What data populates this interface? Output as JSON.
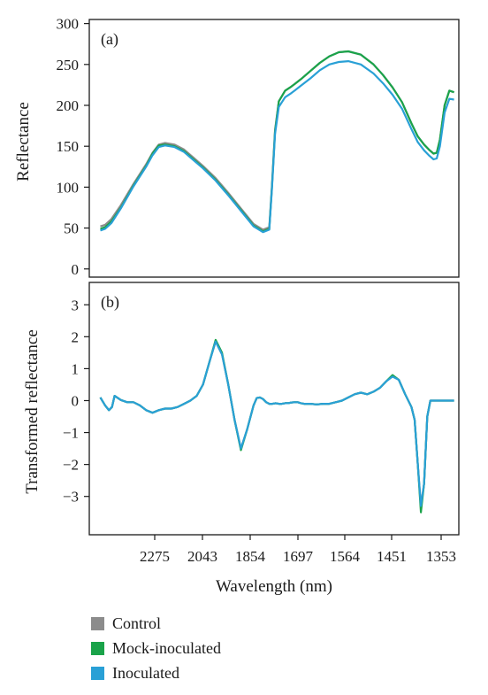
{
  "colors": {
    "control": "#8c8c8c",
    "mock": "#1aa34a",
    "inoculated": "#29a0d6",
    "axis": "#1a1a1a"
  },
  "legend": [
    {
      "name": "Control",
      "color": "#8c8c8c"
    },
    {
      "name": "Mock-inoculated",
      "color": "#1aa34a"
    },
    {
      "name": "Inoculated",
      "color": "#29a0d6"
    }
  ],
  "chart_data": [
    {
      "type": "line",
      "panel_label": "(a)",
      "ylabel": "Reflectance",
      "xlabel": "",
      "ylim": [
        -10,
        305
      ],
      "yticks": [
        0,
        50,
        100,
        150,
        200,
        250,
        300
      ],
      "x_reversed": true,
      "xlim": [
        2500,
        1330
      ],
      "x": [
        2465,
        2450,
        2430,
        2400,
        2360,
        2320,
        2300,
        2280,
        2260,
        2230,
        2200,
        2170,
        2140,
        2100,
        2060,
        2020,
        1980,
        1950,
        1930,
        1922,
        1912,
        1900,
        1880,
        1864,
        1850,
        1830,
        1800,
        1770,
        1740,
        1710,
        1680,
        1640,
        1600,
        1570,
        1540,
        1510,
        1480,
        1460,
        1440,
        1425,
        1410,
        1400,
        1390,
        1375,
        1360,
        1345
      ],
      "series": [
        {
          "name": "Control",
          "values": [
            52,
            54,
            61,
            78,
            104,
            128,
            142,
            152,
            154,
            152,
            146,
            136,
            126,
            111,
            93,
            74,
            55,
            48,
            51,
            100,
            170,
            205,
            218,
            222,
            226,
            232,
            242,
            252,
            260,
            265,
            266,
            262,
            250,
            237,
            222,
            204,
            178,
            162,
            152,
            146,
            141,
            142,
            158,
            200,
            218,
            216
          ]
        },
        {
          "name": "Mock-inoculated",
          "values": [
            49,
            51,
            58,
            75,
            102,
            126,
            141,
            151,
            152,
            150,
            144,
            134,
            124,
            109,
            91,
            72,
            53,
            46,
            49,
            98,
            168,
            205,
            218,
            222,
            226,
            232,
            242,
            252,
            260,
            265,
            266,
            262,
            250,
            237,
            222,
            204,
            178,
            162,
            152,
            146,
            141,
            142,
            158,
            200,
            218,
            216
          ]
        },
        {
          "name": "Inoculated",
          "values": [
            47,
            49,
            56,
            74,
            101,
            125,
            139,
            149,
            151,
            149,
            143,
            133,
            123,
            108,
            90,
            71,
            52,
            45,
            48,
            96,
            165,
            198,
            210,
            214,
            218,
            224,
            233,
            243,
            250,
            253,
            254,
            250,
            239,
            227,
            213,
            196,
            171,
            155,
            145,
            139,
            134,
            135,
            150,
            191,
            208,
            207
          ]
        }
      ]
    },
    {
      "type": "line",
      "panel_label": "(b)",
      "ylabel": "Transformed reflectance",
      "xlabel": "Wavelength (nm)",
      "ylim": [
        -4.2,
        3.7
      ],
      "yticks": [
        -3,
        -2,
        -1,
        0,
        1,
        2,
        3
      ],
      "x_reversed": true,
      "xlim": [
        2500,
        1330
      ],
      "xticks": [
        "2275",
        "2043",
        "1854",
        "1697",
        "1564",
        "1451",
        "1353"
      ],
      "x": [
        2465,
        2450,
        2438,
        2428,
        2420,
        2400,
        2380,
        2360,
        2340,
        2320,
        2300,
        2280,
        2260,
        2240,
        2220,
        2200,
        2180,
        2160,
        2140,
        2120,
        2100,
        2080,
        2060,
        2040,
        2020,
        2000,
        1980,
        1970,
        1960,
        1950,
        1940,
        1930,
        1920,
        1910,
        1900,
        1890,
        1880,
        1870,
        1860,
        1850,
        1840,
        1830,
        1820,
        1800,
        1780,
        1760,
        1740,
        1720,
        1700,
        1680,
        1660,
        1640,
        1620,
        1600,
        1580,
        1560,
        1540,
        1520,
        1500,
        1480,
        1470,
        1460,
        1450,
        1440,
        1430,
        1420,
        1410,
        1400,
        1395,
        1385,
        1375,
        1365,
        1357,
        1345
      ],
      "series": [
        {
          "name": "Control",
          "values": [
            0.1,
            -0.15,
            -0.3,
            -0.2,
            0.15,
            0.02,
            -0.05,
            -0.05,
            -0.15,
            -0.3,
            -0.38,
            -0.3,
            -0.25,
            -0.25,
            -0.2,
            -0.1,
            0.0,
            0.15,
            0.5,
            1.2,
            1.85,
            1.45,
            0.5,
            -0.6,
            -1.5,
            -0.9,
            -0.15,
            0.08,
            0.1,
            0.05,
            -0.05,
            -0.1,
            -0.1,
            -0.08,
            -0.1,
            -0.1,
            -0.08,
            -0.08,
            -0.06,
            -0.05,
            -0.05,
            -0.08,
            -0.1,
            -0.1,
            -0.12,
            -0.1,
            -0.1,
            -0.05,
            0.0,
            0.1,
            0.2,
            0.25,
            0.2,
            0.28,
            0.4,
            0.6,
            0.78,
            0.65,
            0.2,
            -0.2,
            -0.6,
            -2.0,
            -3.3,
            -2.6,
            -0.5,
            0,
            0,
            0,
            0,
            0,
            0,
            0,
            0,
            0
          ]
        },
        {
          "name": "Mock-inoculated",
          "values": [
            0.1,
            -0.15,
            -0.3,
            -0.2,
            0.15,
            0.02,
            -0.05,
            -0.05,
            -0.15,
            -0.3,
            -0.38,
            -0.3,
            -0.25,
            -0.25,
            -0.2,
            -0.1,
            0.0,
            0.15,
            0.5,
            1.2,
            1.9,
            1.5,
            0.5,
            -0.6,
            -1.55,
            -0.9,
            -0.15,
            0.08,
            0.1,
            0.05,
            -0.05,
            -0.1,
            -0.1,
            -0.08,
            -0.1,
            -0.1,
            -0.08,
            -0.08,
            -0.06,
            -0.05,
            -0.05,
            -0.08,
            -0.1,
            -0.1,
            -0.12,
            -0.1,
            -0.1,
            -0.05,
            0.0,
            0.1,
            0.2,
            0.25,
            0.2,
            0.28,
            0.4,
            0.6,
            0.8,
            0.65,
            0.2,
            -0.2,
            -0.6,
            -2.0,
            -3.5,
            -2.6,
            -0.5,
            0,
            0,
            0,
            0,
            0,
            0,
            0,
            0,
            0
          ]
        },
        {
          "name": "Inoculated",
          "values": [
            0.1,
            -0.15,
            -0.3,
            -0.2,
            0.15,
            0.02,
            -0.05,
            -0.05,
            -0.15,
            -0.3,
            -0.38,
            -0.3,
            -0.25,
            -0.25,
            -0.2,
            -0.1,
            0.0,
            0.15,
            0.5,
            1.2,
            1.85,
            1.45,
            0.5,
            -0.6,
            -1.5,
            -0.9,
            -0.15,
            0.08,
            0.1,
            0.05,
            -0.05,
            -0.1,
            -0.1,
            -0.08,
            -0.1,
            -0.1,
            -0.08,
            -0.08,
            -0.06,
            -0.05,
            -0.05,
            -0.08,
            -0.1,
            -0.1,
            -0.12,
            -0.1,
            -0.1,
            -0.05,
            0.0,
            0.1,
            0.2,
            0.25,
            0.2,
            0.28,
            0.4,
            0.6,
            0.75,
            0.65,
            0.2,
            -0.2,
            -0.6,
            -2.0,
            -3.3,
            -2.6,
            -0.5,
            0,
            0,
            0,
            0,
            0,
            0,
            0,
            0,
            0
          ]
        }
      ]
    }
  ]
}
